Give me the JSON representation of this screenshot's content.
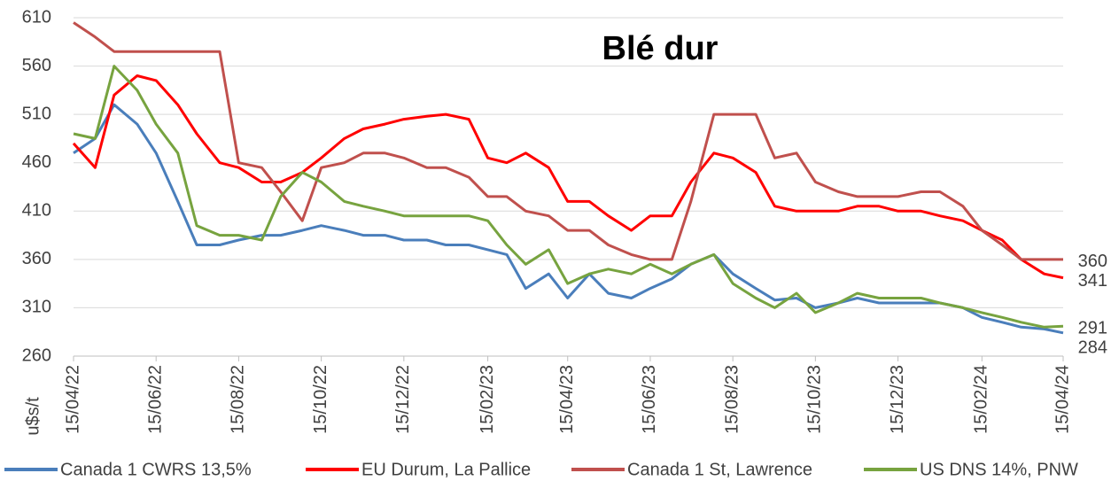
{
  "chart_data": {
    "type": "line",
    "title": "Blé dur",
    "ylabel": "u$s/t",
    "ylim": [
      260,
      610
    ],
    "yticks": [
      260,
      310,
      360,
      410,
      460,
      510,
      560,
      610
    ],
    "xlim": [
      "2022-04-15",
      "2024-04-15"
    ],
    "xticks": [
      {
        "value": "2022-04-15",
        "label": "15/04/22"
      },
      {
        "value": "2022-06-15",
        "label": "15/06/22"
      },
      {
        "value": "2022-08-15",
        "label": "15/08/22"
      },
      {
        "value": "2022-10-15",
        "label": "15/10/22"
      },
      {
        "value": "2022-12-15",
        "label": "15/12/22"
      },
      {
        "value": "2023-02-15",
        "label": "15/02/23"
      },
      {
        "value": "2023-04-15",
        "label": "15/04/23"
      },
      {
        "value": "2023-06-15",
        "label": "15/06/23"
      },
      {
        "value": "2023-08-15",
        "label": "15/08/23"
      },
      {
        "value": "2023-10-15",
        "label": "15/10/23"
      },
      {
        "value": "2023-12-15",
        "label": "15/12/23"
      },
      {
        "value": "2024-02-15",
        "label": "15/02/24"
      },
      {
        "value": "2024-04-15",
        "label": "15/04/24"
      }
    ],
    "grid": true,
    "x": [
      "2022-04-15",
      "2022-05-01",
      "2022-05-15",
      "2022-06-01",
      "2022-06-15",
      "2022-07-01",
      "2022-07-15",
      "2022-08-01",
      "2022-08-15",
      "2022-09-01",
      "2022-09-15",
      "2022-10-01",
      "2022-10-15",
      "2022-11-01",
      "2022-11-15",
      "2022-12-01",
      "2022-12-15",
      "2023-01-01",
      "2023-01-15",
      "2023-02-01",
      "2023-02-15",
      "2023-03-01",
      "2023-03-15",
      "2023-04-01",
      "2023-04-15",
      "2023-05-01",
      "2023-05-15",
      "2023-06-01",
      "2023-06-15",
      "2023-07-01",
      "2023-07-15",
      "2023-08-01",
      "2023-08-15",
      "2023-09-01",
      "2023-09-15",
      "2023-10-01",
      "2023-10-15",
      "2023-11-01",
      "2023-11-15",
      "2023-12-01",
      "2023-12-15",
      "2024-01-01",
      "2024-01-15",
      "2024-02-01",
      "2024-02-15",
      "2024-03-01",
      "2024-03-15",
      "2024-04-01",
      "2024-04-15"
    ],
    "series": [
      {
        "name": "Canada 1 CWRS 13,5%",
        "color": "#4a7ebb",
        "values": [
          470,
          485,
          520,
          500,
          470,
          420,
          375,
          375,
          380,
          385,
          385,
          390,
          395,
          390,
          385,
          385,
          380,
          380,
          375,
          375,
          370,
          365,
          330,
          345,
          320,
          345,
          325,
          320,
          330,
          340,
          355,
          365,
          345,
          330,
          318,
          320,
          310,
          315,
          320,
          315,
          315,
          315,
          315,
          310,
          300,
          295,
          290,
          288,
          284
        ]
      },
      {
        "name": "EU Durum, La Pallice",
        "color": "#ff0000",
        "values": [
          480,
          455,
          530,
          550,
          545,
          520,
          490,
          460,
          455,
          440,
          440,
          450,
          465,
          485,
          495,
          500,
          505,
          508,
          510,
          505,
          465,
          460,
          470,
          455,
          420,
          420,
          405,
          390,
          405,
          405,
          440,
          470,
          465,
          450,
          415,
          410,
          410,
          410,
          415,
          415,
          410,
          410,
          405,
          400,
          390,
          380,
          360,
          345,
          341
        ]
      },
      {
        "name": "Canada 1 St, Lawrence",
        "color": "#c0504d",
        "values": [
          605,
          590,
          575,
          575,
          575,
          575,
          575,
          575,
          460,
          455,
          430,
          400,
          455,
          460,
          470,
          470,
          465,
          455,
          455,
          445,
          425,
          425,
          410,
          405,
          390,
          390,
          375,
          365,
          360,
          360,
          420,
          510,
          510,
          510,
          465,
          470,
          440,
          430,
          425,
          425,
          425,
          430,
          430,
          415,
          390,
          375,
          360,
          360,
          360
        ]
      },
      {
        "name": "US DNS 14%, PNW",
        "color": "#77a33f",
        "values": [
          490,
          485,
          560,
          535,
          500,
          470,
          395,
          385,
          385,
          380,
          425,
          450,
          440,
          420,
          415,
          410,
          405,
          405,
          405,
          405,
          400,
          375,
          355,
          370,
          335,
          345,
          350,
          345,
          355,
          345,
          355,
          365,
          335,
          320,
          310,
          325,
          305,
          315,
          325,
          320,
          320,
          320,
          315,
          310,
          305,
          300,
          295,
          290,
          291
        ]
      }
    ]
  }
}
